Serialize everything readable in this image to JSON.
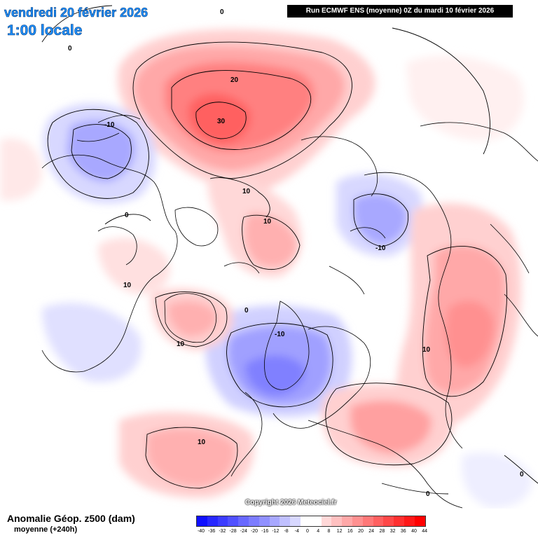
{
  "header": {
    "date": "vendredi 20 février 2026",
    "local_time": "1:00 locale",
    "run_info": "Run ECMWF ENS (moyenne) 0Z du mardi 10 février 2026"
  },
  "footer": {
    "title": "Anomalie Géop. z500 (dam)",
    "subtitle": "moyenne   (+240h)",
    "copyright": "Copyright 2026 Meteociel.fr"
  },
  "scale": {
    "ticks": [
      "-40",
      "-36",
      "-32",
      "-28",
      "-24",
      "-20",
      "-16",
      "-12",
      "-8",
      "-4",
      "0",
      "4",
      "8",
      "12",
      "16",
      "20",
      "24",
      "28",
      "32",
      "36",
      "40",
      "44"
    ],
    "colors": [
      "#1010ff",
      "#2828ff",
      "#3c3cff",
      "#5050ff",
      "#6868ff",
      "#7c7cff",
      "#9090ff",
      "#a8a8ff",
      "#c0c0ff",
      "#d8d8ff",
      "#ffffff",
      "#ffffff",
      "#ffd8d8",
      "#ffc0c0",
      "#ffa8a8",
      "#ff9090",
      "#ff7878",
      "#ff6060",
      "#ff4848",
      "#ff3030",
      "#ff1818",
      "#ff0000"
    ]
  },
  "contour_labels": [
    {
      "text": "0",
      "name": "contour-0-top"
    },
    {
      "text": "0",
      "name": "contour-0-topleft"
    },
    {
      "text": "20",
      "name": "contour-20-siberia"
    },
    {
      "text": "30",
      "name": "contour-30-siberia"
    },
    {
      "text": "-10",
      "name": "contour-m10-alaska"
    },
    {
      "text": "10",
      "name": "contour-10-arctic"
    },
    {
      "text": "10",
      "name": "contour-10-pole"
    },
    {
      "text": "0",
      "name": "contour-0-canada"
    },
    {
      "text": "10",
      "name": "contour-10-hudson"
    },
    {
      "text": "-10",
      "name": "contour-m10-central-asia"
    },
    {
      "text": "0",
      "name": "contour-0-greenland"
    },
    {
      "text": "10",
      "name": "contour-10-greenland"
    },
    {
      "text": "-10",
      "name": "contour-m10-scandinavia"
    },
    {
      "text": "10",
      "name": "contour-10-atlantic"
    },
    {
      "text": "10",
      "name": "contour-10-eastasia"
    },
    {
      "text": "0",
      "name": "contour-0-arabia"
    },
    {
      "text": "0",
      "name": "contour-0-pacific"
    }
  ],
  "colors": {
    "title_blue": "#1e90ff",
    "positive_anomaly": "#ff4848",
    "negative_anomaly": "#6868ff"
  }
}
